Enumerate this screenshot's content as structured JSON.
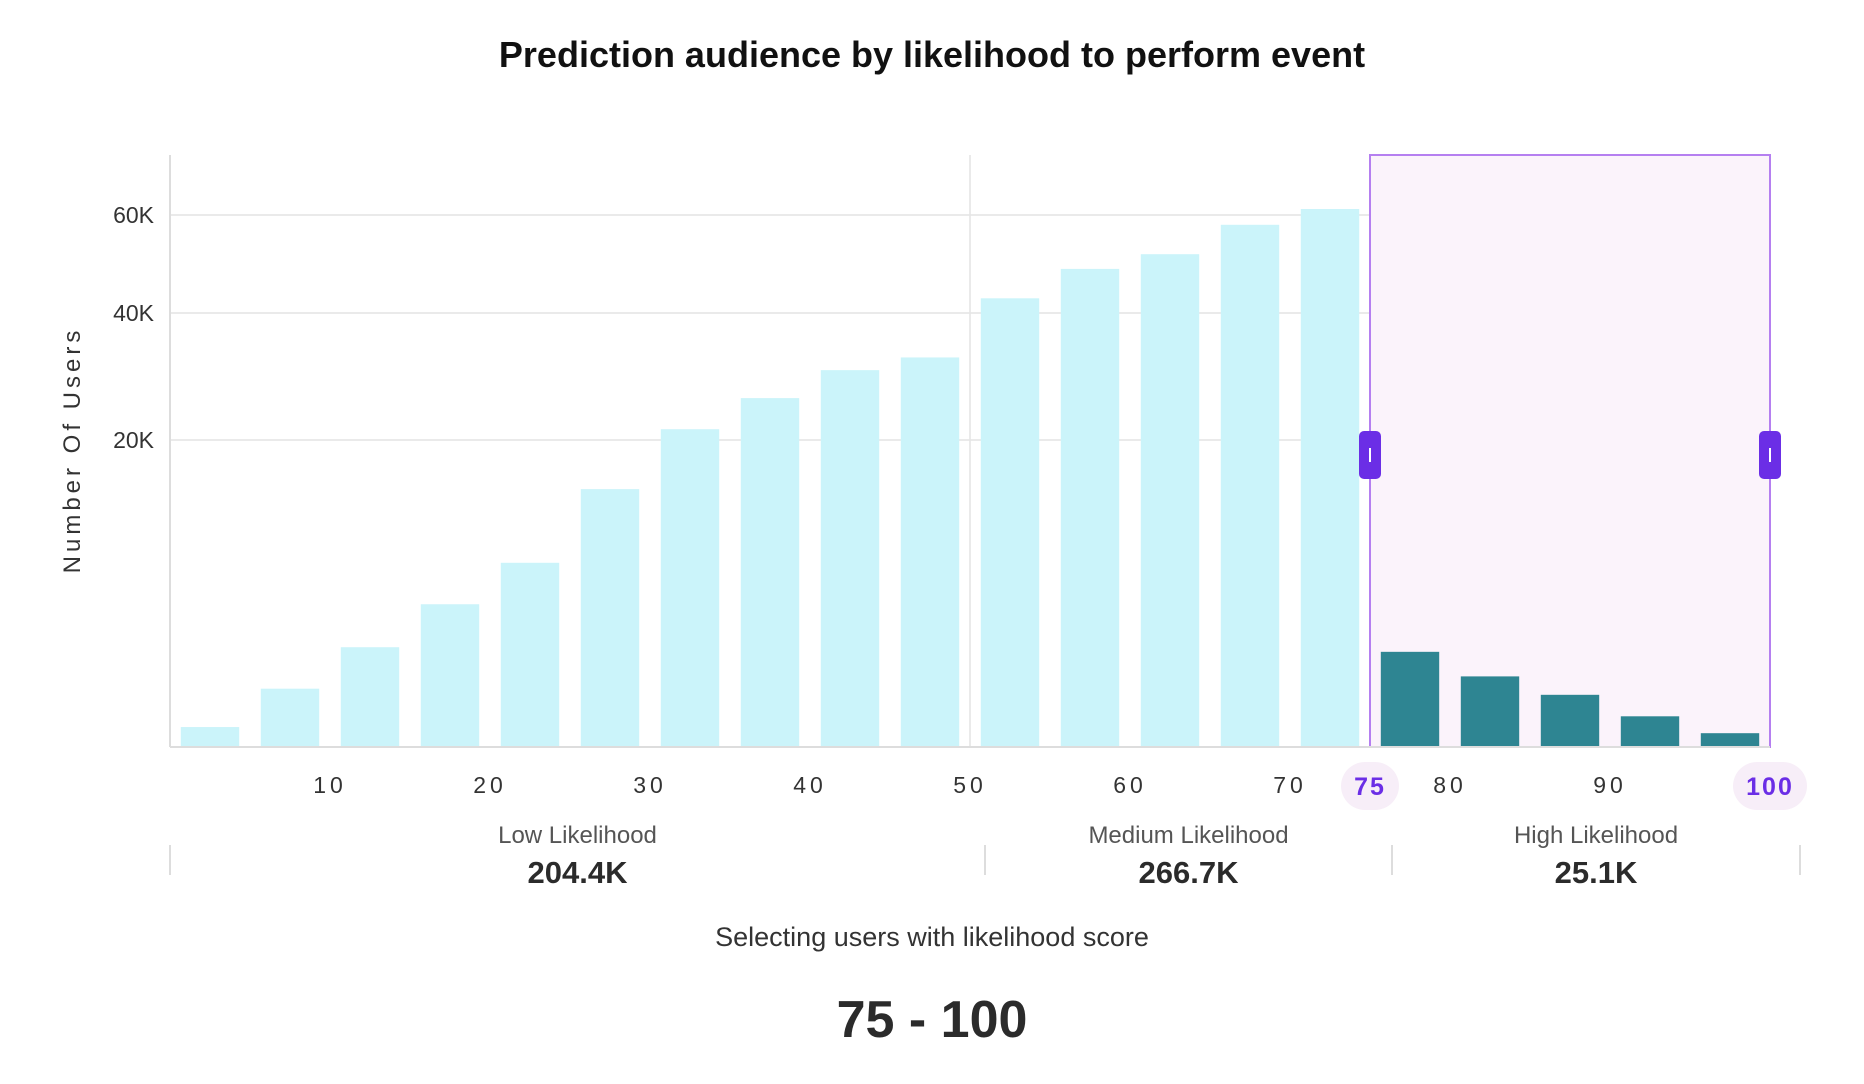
{
  "chart_data": {
    "type": "bar",
    "title": "Prediction audience by likelihood to perform event",
    "ylabel": "Number Of Users",
    "xlabel": "",
    "ylim": [
      0,
      70000
    ],
    "y_ticks": [
      {
        "value": 20000,
        "label": "20K"
      },
      {
        "value": 40000,
        "label": "40K"
      },
      {
        "value": 60000,
        "label": "60K"
      }
    ],
    "x_ticks": [
      "10",
      "20",
      "30",
      "40",
      "50",
      "60",
      "70",
      "80",
      "90"
    ],
    "categories": [
      "0-5",
      "5-10",
      "10-15",
      "15-20",
      "20-25",
      "25-30",
      "30-35",
      "35-40",
      "40-45",
      "45-50",
      "50-55",
      "55-60",
      "60-65",
      "65-70",
      "70-75",
      "75-80",
      "80-85",
      "85-90",
      "90-95",
      "95-100"
    ],
    "values": [
      1300,
      3800,
      6500,
      9300,
      12000,
      16800,
      21700,
      26600,
      31000,
      33000,
      43000,
      49000,
      52000,
      58000,
      61000,
      6200,
      4600,
      3400,
      2000,
      900
    ],
    "selection": {
      "start": 75,
      "end": 100,
      "start_label": "75",
      "end_label": "100"
    },
    "colors": {
      "unselected_bar": "#cbf4fa",
      "selected_bar": "#2e8592",
      "selection_fill": "#fbf3fb",
      "selection_border": "#b57ff0",
      "handle": "#6b2ee6",
      "grid": "#e4e4e4"
    },
    "segments": [
      {
        "name": "Low Likelihood",
        "value": "204.4K"
      },
      {
        "name": "Medium Likelihood",
        "value": "266.7K"
      },
      {
        "name": "High Likelihood",
        "value": "25.1K"
      }
    ]
  },
  "footer": {
    "selecting_label": "Selecting users with likelihood score",
    "selection_range": "75 - 100"
  }
}
